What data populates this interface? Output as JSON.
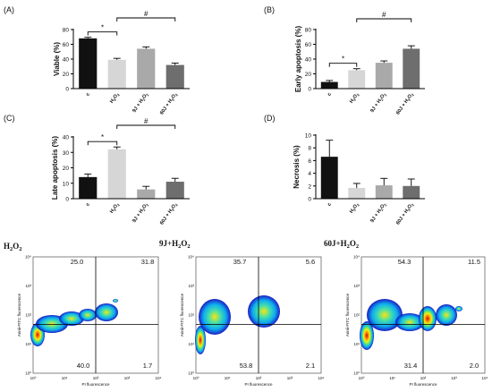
{
  "chart_data": [
    {
      "type": "bar",
      "panel": "(A)",
      "ylabel": "Viable (%)",
      "ylim": [
        0,
        80
      ],
      "yticks": [
        0,
        20,
        40,
        60,
        80
      ],
      "categories": [
        "c",
        "H2O2",
        "9J + H2O2",
        "60J + H2O2"
      ],
      "values": [
        68,
        39,
        54,
        32
      ],
      "errors": [
        1.5,
        2,
        2.5,
        2.5
      ],
      "colors": [
        "#111111",
        "#d6d6d6",
        "#a9a9a9",
        "#6e6e6e"
      ],
      "brackets": [
        {
          "from": 0,
          "to": 1,
          "label": "*"
        },
        {
          "from": 1,
          "to": 3,
          "label": "#"
        }
      ]
    },
    {
      "type": "bar",
      "panel": "(B)",
      "ylabel": "Early apoptosis (%)",
      "ylim": [
        0,
        80
      ],
      "yticks": [
        0,
        20,
        40,
        60,
        80
      ],
      "categories": [
        "c",
        "H2O2",
        "9J + H2O2",
        "60J + H2O2"
      ],
      "values": [
        9,
        25,
        35,
        54
      ],
      "errors": [
        2,
        2,
        2.5,
        4
      ],
      "colors": [
        "#111111",
        "#d6d6d6",
        "#a9a9a9",
        "#6e6e6e"
      ],
      "brackets": [
        {
          "from": 0,
          "to": 1,
          "label": "*"
        },
        {
          "from": 1,
          "to": 3,
          "label": "#"
        }
      ]
    },
    {
      "type": "bar",
      "panel": "(C)",
      "ylabel": "Late apoptosis (%)",
      "ylim": [
        0,
        40
      ],
      "yticks": [
        0,
        10,
        20,
        30,
        40
      ],
      "categories": [
        "c",
        "H2O2",
        "9J + H2O2",
        "60J + H2O2"
      ],
      "values": [
        14,
        32,
        6,
        11
      ],
      "errors": [
        2,
        1.5,
        2,
        2.2
      ],
      "colors": [
        "#111111",
        "#d6d6d6",
        "#a9a9a9",
        "#6e6e6e"
      ],
      "brackets": [
        {
          "from": 0,
          "to": 1,
          "label": "*"
        },
        {
          "from": 1,
          "to": 3,
          "label": "#"
        }
      ]
    },
    {
      "type": "bar",
      "panel": "(D)",
      "ylabel": "Necrosis (%)",
      "ylim": [
        0,
        10
      ],
      "yticks": [
        0,
        2,
        4,
        6,
        8,
        10
      ],
      "categories": [
        "c",
        "H2O2",
        "9J + H2O2",
        "60J + H2O2"
      ],
      "values": [
        6.6,
        1.7,
        2.1,
        2.0
      ],
      "errors": [
        2.6,
        0.7,
        1.1,
        1.1
      ],
      "colors": [
        "#111111",
        "#d6d6d6",
        "#a9a9a9",
        "#6e6e6e"
      ],
      "brackets": []
    }
  ],
  "flow": [
    {
      "title": "H2O2",
      "quadrants": {
        "ul": "25.0",
        "ur": "31.8",
        "ll": "40.0",
        "lr": "1.7"
      },
      "ylabel": "Annii-FITC fluorescence",
      "xlabel": "PI fluorescence"
    },
    {
      "title": "9J+H2O2",
      "quadrants": {
        "ul": "35.7",
        "ur": "5.6",
        "ll": "53.8",
        "lr": "2.1"
      },
      "ylabel": "Annii-FITC fluorescence",
      "xlabel": "PI fluorescence"
    },
    {
      "title": "60J+H2O2",
      "quadrants": {
        "ul": "54.3",
        "ur": "11.5",
        "ll": "31.4",
        "lr": "2.0"
      },
      "ylabel": "Annii-FITC fluorescence",
      "xlabel": "PI fluorescence"
    }
  ]
}
